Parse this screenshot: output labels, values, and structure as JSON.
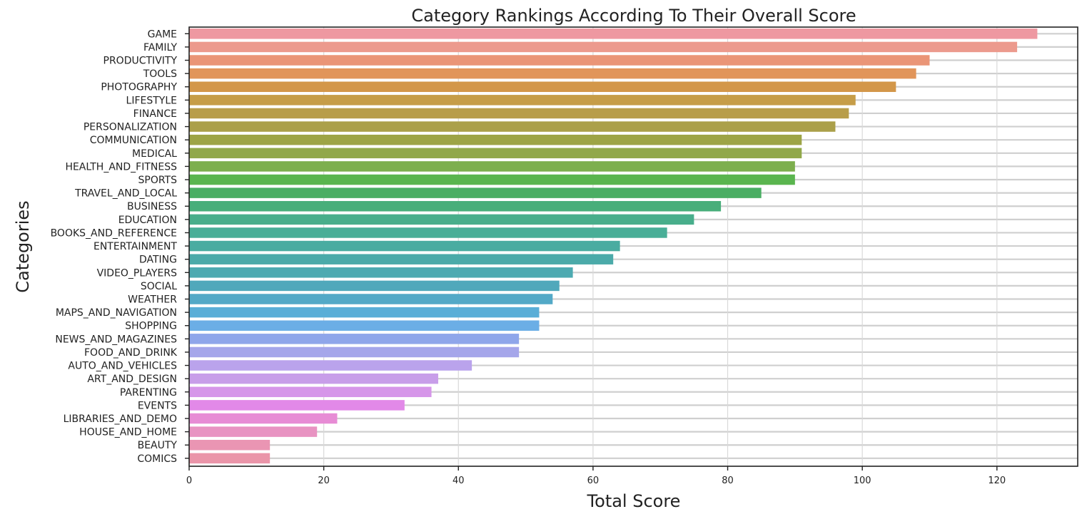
{
  "chart_data": {
    "type": "bar",
    "orientation": "horizontal",
    "title": "Category Rankings According To Their Overall Score",
    "xlabel": "Total Score",
    "ylabel": "Categories",
    "xlim": [
      0,
      132
    ],
    "xticks": [
      "0",
      "20",
      "40",
      "60",
      "80",
      "100",
      "120"
    ],
    "grid": true,
    "categories": [
      "GAME",
      "FAMILY",
      "PRODUCTIVITY",
      "TOOLS",
      "PHOTOGRAPHY",
      "LIFESTYLE",
      "FINANCE",
      "PERSONALIZATION",
      "COMMUNICATION",
      "MEDICAL",
      "HEALTH_AND_FITNESS",
      "SPORTS",
      "TRAVEL_AND_LOCAL",
      "BUSINESS",
      "EDUCATION",
      "BOOKS_AND_REFERENCE",
      "ENTERTAINMENT",
      "DATING",
      "VIDEO_PLAYERS",
      "SOCIAL",
      "WEATHER",
      "MAPS_AND_NAVIGATION",
      "SHOPPING",
      "NEWS_AND_MAGAZINES",
      "FOOD_AND_DRINK",
      "AUTO_AND_VEHICLES",
      "ART_AND_DESIGN",
      "PARENTING",
      "EVENTS",
      "LIBRARIES_AND_DEMO",
      "HOUSE_AND_HOME",
      "BEAUTY",
      "COMICS"
    ],
    "values": [
      126,
      123,
      110,
      108,
      105,
      99,
      98,
      96,
      91,
      91,
      90,
      90,
      85,
      79,
      75,
      71,
      64,
      63,
      57,
      55,
      54,
      52,
      52,
      49,
      49,
      42,
      37,
      36,
      32,
      22,
      19,
      12,
      12
    ],
    "colors": [
      "#ee98a1",
      "#ec9a8d",
      "#ea9577",
      "#e1955a",
      "#d3974a",
      "#c69d48",
      "#b89d4a",
      "#aba04a",
      "#9da446",
      "#91a84a",
      "#7daf4e",
      "#5ab54f",
      "#4aae63",
      "#48ae7a",
      "#48ae8b",
      "#49ae97",
      "#4aaca1",
      "#4baaa9",
      "#4daab1",
      "#50a8bb",
      "#53a9c7",
      "#5aaed7",
      "#6baee6",
      "#8fa6ea",
      "#a5a6ea",
      "#baa3ec",
      "#c89ee9",
      "#d696e9",
      "#e289e8",
      "#e78cd5",
      "#e893c2",
      "#ea95b3",
      "#ea95a9"
    ]
  }
}
